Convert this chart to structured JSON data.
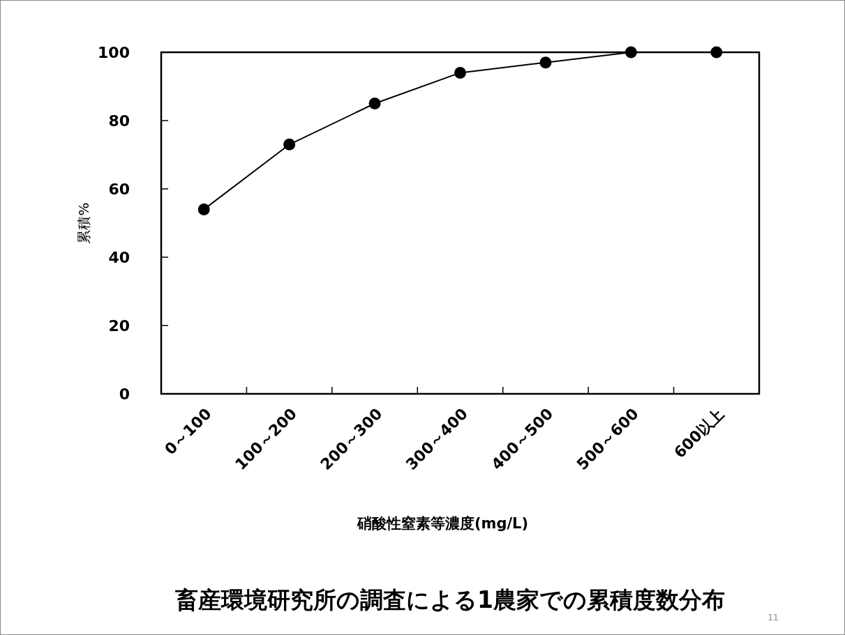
{
  "chart_data": {
    "type": "line",
    "title": "畜産環境研究所の調査による1農家での累積度数分布",
    "xlabel": "硝酸性窒素等濃度(mg/L)",
    "ylabel": "累積%",
    "categories": [
      "0～100",
      "100～200",
      "200～300",
      "300～400",
      "400～500",
      "500～600",
      "600以上"
    ],
    "series": [
      {
        "color": "#000000",
        "values": [
          54,
          73,
          85,
          94,
          97,
          100,
          100
        ]
      }
    ],
    "ylim": [
      0,
      100
    ],
    "yticks": [
      0,
      20,
      40,
      60,
      80,
      100
    ],
    "marker": "circle",
    "line_style": "solid",
    "grid": false,
    "annotations": [
      "11"
    ]
  }
}
